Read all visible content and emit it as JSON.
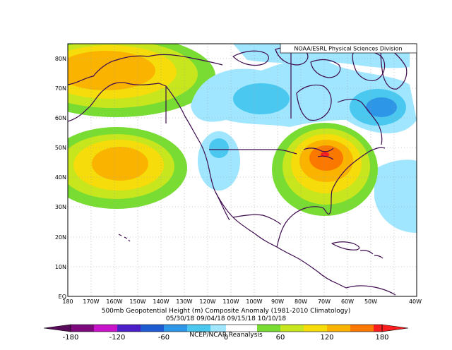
{
  "source_label": "NOAA/ESRL Physical Sciences Division",
  "caption_line1": "500mb Geopotential Height (m) Composite Anomaly (1981-2010 Climatology)",
  "caption_line2": "05/30/18 09/04/18 09/15/18 10/10/18",
  "caption_line3": "NCEP/NCAR Reanalysis",
  "map": {
    "lon_labels": [
      "180",
      "170W",
      "160W",
      "150W",
      "140W",
      "130W",
      "120W",
      "110W",
      "100W",
      "90W",
      "80W",
      "70W",
      "60W",
      "50W",
      "40W"
    ],
    "lat_labels": [
      "80N",
      "70N",
      "60N",
      "50N",
      "40N",
      "30N",
      "20N",
      "10N",
      "EQ"
    ],
    "line_color": "#3d0a4e"
  },
  "colorbar": {
    "tick_labels": [
      "-180",
      "-120",
      "-60",
      "0",
      "60",
      "120",
      "180"
    ],
    "colors": [
      "#7d0a7d",
      "#c814c8",
      "#4b1ec8",
      "#1e5ad2",
      "#2d96e6",
      "#4bc8f0",
      "#a0e6ff",
      "#ffffff",
      "#ffffff",
      "#78dc32",
      "#c8e61e",
      "#f5dc0a",
      "#fab400",
      "#fa7800",
      "#fa1e1e"
    ]
  }
}
